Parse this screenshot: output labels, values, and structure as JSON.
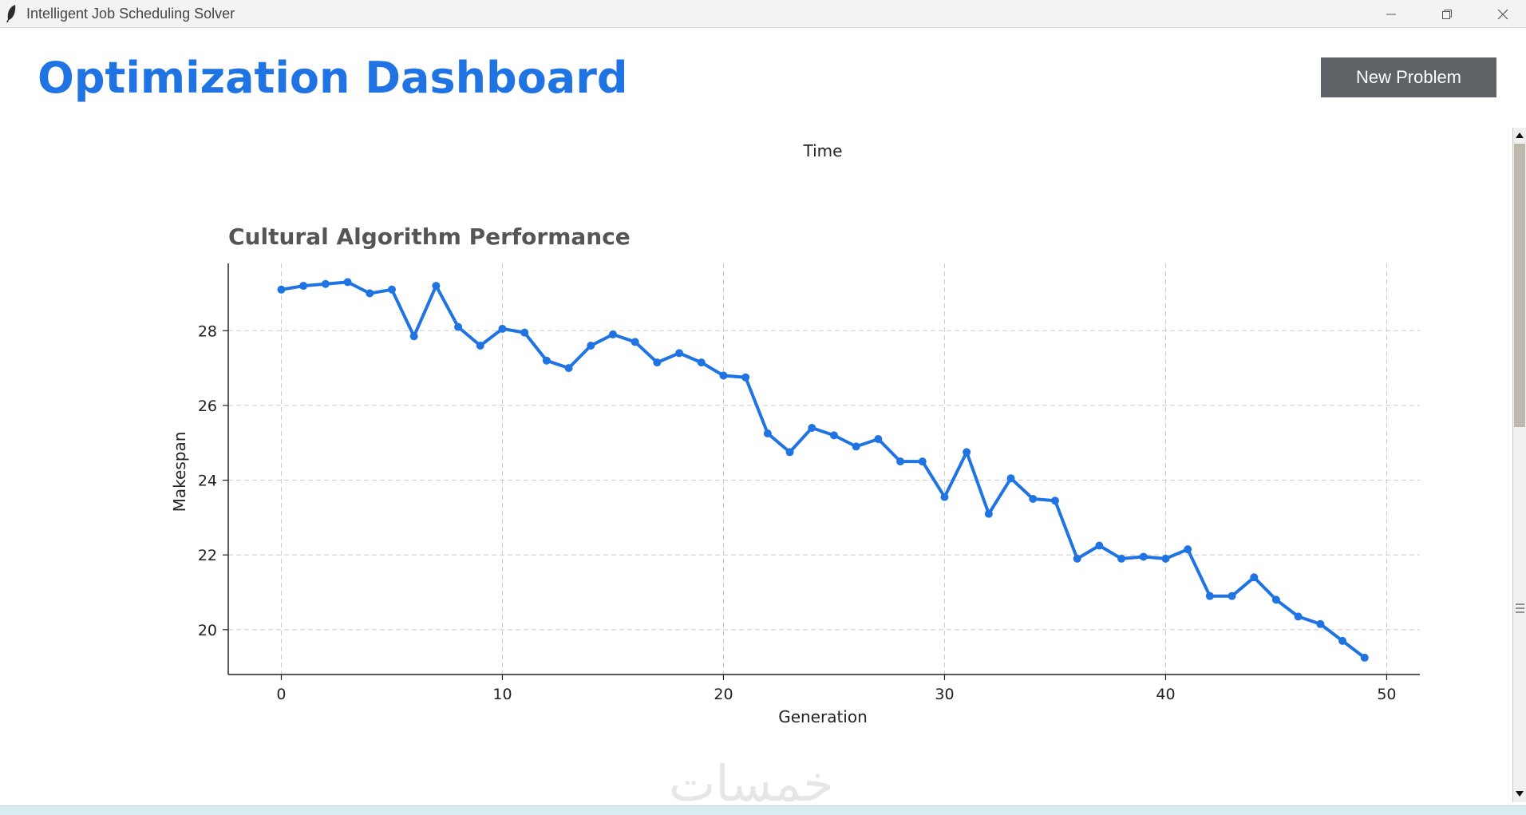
{
  "window": {
    "title": "Intelligent Job Scheduling Solver",
    "controls": {
      "minimize": "minimize-icon",
      "maximize": "restore-icon",
      "close": "close-icon"
    }
  },
  "header": {
    "title": "Optimization Dashboard",
    "new_problem_label": "New Problem",
    "accent_color": "#1f73e2",
    "button_color": "#5f6368"
  },
  "section_label": "Time",
  "watermark": "خمسات",
  "chart_data": {
    "type": "line",
    "title": "Cultural Algorithm Performance",
    "xlabel": "Generation",
    "ylabel": "Makespan",
    "series_color": "#1f73e2",
    "xlim": [
      -2.4,
      51.5
    ],
    "ylim": [
      18.8,
      29.8
    ],
    "xticks": [
      0,
      10,
      20,
      30,
      40,
      50
    ],
    "yticks": [
      20,
      22,
      24,
      26,
      28
    ],
    "grid": true,
    "x": [
      0,
      1,
      2,
      3,
      4,
      5,
      6,
      7,
      8,
      9,
      10,
      11,
      12,
      13,
      14,
      15,
      16,
      17,
      18,
      19,
      20,
      21,
      22,
      23,
      24,
      25,
      26,
      27,
      28,
      29,
      30,
      31,
      32,
      33,
      34,
      35,
      36,
      37,
      38,
      39,
      40,
      41,
      42,
      43,
      44,
      45,
      46,
      47,
      48,
      49
    ],
    "values": [
      29.1,
      29.2,
      29.25,
      29.3,
      29.0,
      29.1,
      27.85,
      29.2,
      28.1,
      27.6,
      28.05,
      27.95,
      27.2,
      27.0,
      27.6,
      27.9,
      27.7,
      27.15,
      27.4,
      27.15,
      26.8,
      26.75,
      25.25,
      24.75,
      25.4,
      25.2,
      24.9,
      25.1,
      24.5,
      24.5,
      23.55,
      24.75,
      23.1,
      24.05,
      23.5,
      23.45,
      21.9,
      22.25,
      21.9,
      21.95,
      21.9,
      22.15,
      20.9,
      20.9,
      21.4,
      20.8,
      20.35,
      20.15,
      19.7,
      19.25
    ]
  }
}
